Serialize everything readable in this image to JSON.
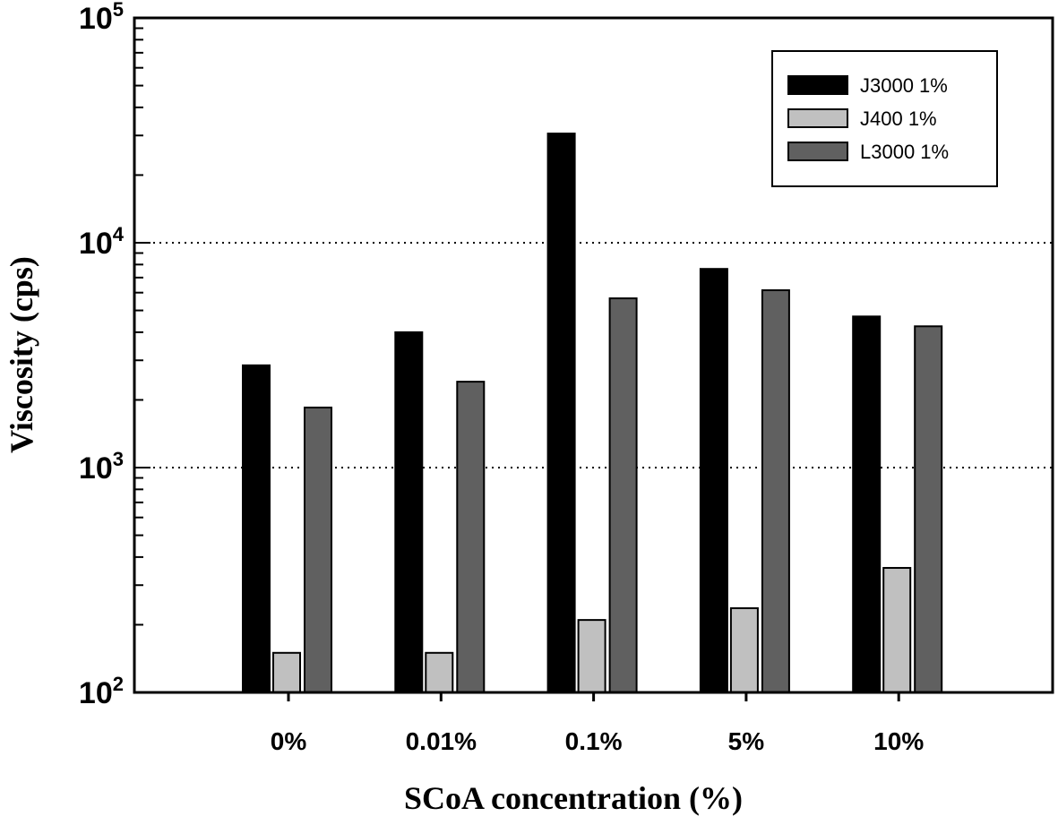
{
  "chart_data": {
    "type": "bar",
    "title": "",
    "xlabel": "SCoA concentration (%)",
    "ylabel": "Viscosity (cps)",
    "yscale": "log",
    "ylim": [
      100,
      100000
    ],
    "yticks": [
      {
        "base": "10",
        "exp": "2",
        "value": 100
      },
      {
        "base": "10",
        "exp": "3",
        "value": 1000
      },
      {
        "base": "10",
        "exp": "4",
        "value": 10000
      },
      {
        "base": "10",
        "exp": "5",
        "value": 100000
      }
    ],
    "grid": "dotted horizontal lines at 10^3 and 10^4",
    "legend_position": "top-right",
    "categories": [
      "0%",
      "0.01%",
      "0.1%",
      "5%",
      "10%"
    ],
    "series": [
      {
        "name": "J3000 1%",
        "color": "#000000",
        "values": [
          2850,
          4000,
          30600,
          7650,
          4700
        ]
      },
      {
        "name": "J400 1%",
        "color": "#c0c0c0",
        "values": [
          150,
          150,
          210,
          237,
          358
        ]
      },
      {
        "name": "L3000 1%",
        "color": "#606060",
        "values": [
          1850,
          2410,
          5660,
          6150,
          4250
        ]
      }
    ]
  }
}
